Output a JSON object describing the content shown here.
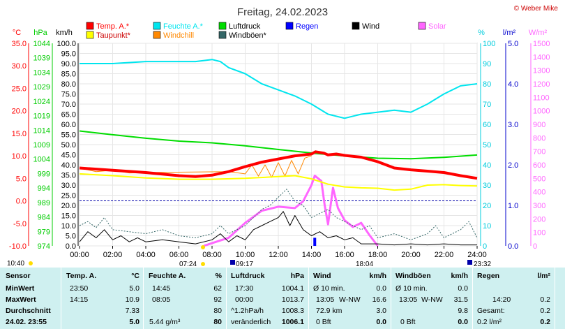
{
  "header": {
    "title": "Freitag, 24.02.2023",
    "copyright": "© Weber Mike"
  },
  "legend": [
    {
      "label": "Temp. A.*",
      "color": "#ff0000"
    },
    {
      "label": "Feuchte A.*",
      "color": "#00e5ee"
    },
    {
      "label": "Luftdruck",
      "color": "#00dd00"
    },
    {
      "label": "Regen",
      "color": "#0000ff"
    },
    {
      "label": "Wind",
      "color": "#000000"
    },
    {
      "label": "Solar",
      "color": "#ff66ff"
    },
    {
      "label": "Taupunkt*",
      "color": "#ffff00"
    },
    {
      "label": "Windchill",
      "color": "#ff8800"
    },
    {
      "label": "Windböen*",
      "color": "#336666"
    }
  ],
  "axis_units": {
    "temp": "°C",
    "press": "hPa",
    "wind": "km/h",
    "hum": "%",
    "rain": "l/m²",
    "solar": "W/m²"
  },
  "chart_data": {
    "type": "line",
    "x_ticks": [
      "00:00",
      "02:00",
      "04:00",
      "06:00",
      "08:00",
      "10:00",
      "12:00",
      "14:00",
      "16:00",
      "18:00",
      "20:00",
      "22:00",
      "24:00"
    ],
    "axes": {
      "temp": {
        "unit": "°C",
        "range": [
          -10,
          35
        ],
        "ticks": [
          "35.0",
          "30.0",
          "25.0",
          "20.0",
          "15.0",
          "10.0",
          "5.0",
          "0.0",
          "-5.0",
          "-10.0"
        ],
        "color": "#ff0000"
      },
      "press": {
        "unit": "hPa",
        "range": [
          974,
          1044
        ],
        "ticks": [
          "1044",
          "1039",
          "1034",
          "1029",
          "1024",
          "1019",
          "1014",
          "1009",
          "1004",
          "999",
          "994",
          "989",
          "984",
          "979",
          "974"
        ],
        "color": "#00cc00"
      },
      "wind": {
        "unit": "km/h",
        "range": [
          0,
          100
        ],
        "ticks": [
          "100.0",
          "95.0",
          "90.0",
          "85.0",
          "80.0",
          "75.0",
          "70.0",
          "65.0",
          "60.0",
          "55.0",
          "50.0",
          "45.0",
          "40.0",
          "35.0",
          "30.0",
          "25.0",
          "20.0",
          "15.0",
          "10.0",
          "5.0",
          "0.0"
        ],
        "color": "#000000"
      },
      "hum": {
        "unit": "%",
        "range": [
          0,
          100
        ],
        "ticks": [
          "100",
          "90",
          "80",
          "70",
          "60",
          "50",
          "40",
          "30",
          "20",
          "10",
          "0"
        ],
        "color": "#00ccdd"
      },
      "rain": {
        "unit": "l/m²",
        "range": [
          0,
          5
        ],
        "ticks": [
          "5.0",
          "4.0",
          "3.0",
          "2.0",
          "1.0",
          "0.0"
        ],
        "color": "#0000cc"
      },
      "solar": {
        "unit": "W/m²",
        "range": [
          0,
          1500
        ],
        "ticks": [
          "1500",
          "1400",
          "1300",
          "1200",
          "1100",
          "1000",
          "900",
          "800",
          "700",
          "600",
          "500",
          "400",
          "300",
          "200",
          "100",
          "0"
        ],
        "color": "#ff66ff"
      }
    },
    "series": [
      {
        "name": "Temp. A.*",
        "axis": "temp",
        "color": "#ff0000",
        "width": 4,
        "points": [
          [
            0,
            7.3
          ],
          [
            2,
            6.8
          ],
          [
            4,
            6.3
          ],
          [
            6,
            5.6
          ],
          [
            7,
            5.4
          ],
          [
            8,
            5.7
          ],
          [
            9,
            6.5
          ],
          [
            10,
            7.6
          ],
          [
            11,
            8.6
          ],
          [
            12,
            9.3
          ],
          [
            13,
            10.0
          ],
          [
            14,
            10.4
          ],
          [
            14.25,
            10.9
          ],
          [
            14.75,
            10.6
          ],
          [
            15,
            10.2
          ],
          [
            15.5,
            10.4
          ],
          [
            16,
            10.1
          ],
          [
            17,
            9.7
          ],
          [
            18,
            8.7
          ],
          [
            19,
            7.3
          ],
          [
            20,
            6.9
          ],
          [
            21,
            6.6
          ],
          [
            22,
            6.3
          ],
          [
            23,
            5.6
          ],
          [
            24,
            5.0
          ]
        ]
      },
      {
        "name": "Taupunkt*",
        "axis": "temp",
        "color": "#ffff00",
        "width": 2,
        "points": [
          [
            0,
            6.0
          ],
          [
            2,
            5.6
          ],
          [
            4,
            5.1
          ],
          [
            6,
            4.8
          ],
          [
            8,
            4.8
          ],
          [
            10,
            5.0
          ],
          [
            12,
            5.4
          ],
          [
            13,
            5.6
          ],
          [
            14,
            4.9
          ],
          [
            15,
            3.7
          ],
          [
            16,
            3.1
          ],
          [
            17,
            2.9
          ],
          [
            18,
            2.8
          ],
          [
            19,
            2.4
          ],
          [
            20,
            2.6
          ],
          [
            21,
            3.5
          ],
          [
            22,
            3.6
          ],
          [
            23,
            3.4
          ],
          [
            24,
            3.3
          ]
        ]
      },
      {
        "name": "Feuchte A.*",
        "axis": "hum",
        "color": "#00e5ee",
        "width": 2,
        "points": [
          [
            0,
            90
          ],
          [
            2,
            90
          ],
          [
            4,
            91
          ],
          [
            6,
            91
          ],
          [
            7,
            91
          ],
          [
            8,
            92
          ],
          [
            8.5,
            91
          ],
          [
            9,
            88
          ],
          [
            10,
            85
          ],
          [
            11,
            80
          ],
          [
            12,
            77
          ],
          [
            13,
            74
          ],
          [
            14,
            70
          ],
          [
            15,
            65
          ],
          [
            16,
            63
          ],
          [
            17,
            65
          ],
          [
            18,
            66
          ],
          [
            19,
            67
          ],
          [
            20,
            66
          ],
          [
            21,
            70
          ],
          [
            22,
            75
          ],
          [
            23,
            79
          ],
          [
            24,
            80
          ]
        ]
      },
      {
        "name": "Luftdruck",
        "axis": "press",
        "color": "#00dd00",
        "width": 2,
        "points": [
          [
            0,
            1013.7
          ],
          [
            2,
            1012.4
          ],
          [
            4,
            1011.2
          ],
          [
            6,
            1010.2
          ],
          [
            8,
            1009.6
          ],
          [
            10,
            1008.6
          ],
          [
            12,
            1007.3
          ],
          [
            14,
            1006.1
          ],
          [
            16,
            1005.1
          ],
          [
            18,
            1004.3
          ],
          [
            20,
            1004.1
          ],
          [
            22,
            1004.6
          ],
          [
            24,
            1005.4
          ]
        ]
      },
      {
        "name": "Wind",
        "axis": "wind",
        "color": "#000000",
        "width": 1,
        "points": [
          [
            0,
            2
          ],
          [
            0.5,
            7
          ],
          [
            1,
            4
          ],
          [
            1.5,
            8
          ],
          [
            2,
            3
          ],
          [
            2.5,
            5
          ],
          [
            3,
            2
          ],
          [
            3.5,
            4
          ],
          [
            4,
            2
          ],
          [
            5,
            3
          ],
          [
            6,
            2
          ],
          [
            7,
            1
          ],
          [
            8,
            3
          ],
          [
            8.5,
            6
          ],
          [
            9,
            2
          ],
          [
            9.5,
            5
          ],
          [
            10,
            3
          ],
          [
            10.5,
            8
          ],
          [
            11,
            10
          ],
          [
            11.5,
            12
          ],
          [
            12,
            14
          ],
          [
            12.3,
            17
          ],
          [
            12.7,
            10
          ],
          [
            13,
            15
          ],
          [
            13.5,
            8
          ],
          [
            14,
            5
          ],
          [
            14.5,
            7
          ],
          [
            15,
            4
          ],
          [
            15.5,
            5
          ],
          [
            16,
            3
          ],
          [
            16.5,
            4
          ],
          [
            17,
            1
          ],
          [
            18,
            1
          ],
          [
            19,
            0.5
          ],
          [
            20,
            1
          ],
          [
            21,
            0.5
          ],
          [
            22,
            1
          ],
          [
            23,
            0.5
          ],
          [
            24,
            0.5
          ]
        ]
      },
      {
        "name": "Windböen*",
        "axis": "wind",
        "color": "#336666",
        "width": 1,
        "dash": true,
        "points": [
          [
            0,
            10
          ],
          [
            0.5,
            12
          ],
          [
            1,
            9
          ],
          [
            1.5,
            14
          ],
          [
            2,
            8
          ],
          [
            3,
            7
          ],
          [
            4,
            6
          ],
          [
            5,
            8
          ],
          [
            6,
            5
          ],
          [
            7,
            4
          ],
          [
            8,
            6
          ],
          [
            8.5,
            10
          ],
          [
            9,
            6
          ],
          [
            10,
            10
          ],
          [
            10.5,
            14
          ],
          [
            11,
            18
          ],
          [
            11.5,
            20
          ],
          [
            12,
            24
          ],
          [
            12.5,
            28
          ],
          [
            13,
            22
          ],
          [
            13.5,
            20
          ],
          [
            14,
            14
          ],
          [
            14.5,
            16
          ],
          [
            15,
            18
          ],
          [
            15.5,
            14
          ],
          [
            16,
            12
          ],
          [
            16.5,
            10
          ],
          [
            17,
            8
          ],
          [
            17.5,
            10
          ],
          [
            18,
            4
          ],
          [
            19,
            6
          ],
          [
            20,
            3
          ],
          [
            21,
            6
          ],
          [
            21.5,
            10
          ],
          [
            22,
            4
          ],
          [
            23,
            8
          ],
          [
            23.5,
            12
          ],
          [
            24,
            4
          ]
        ]
      },
      {
        "name": "Windchill",
        "axis": "temp",
        "color": "#ff8800",
        "width": 1,
        "points": [
          [
            0,
            7.3
          ],
          [
            1,
            6.5
          ],
          [
            2,
            6.8
          ],
          [
            3,
            6.2
          ],
          [
            4,
            6.3
          ],
          [
            9,
            6.5
          ],
          [
            10,
            6.0
          ],
          [
            10.4,
            8.0
          ],
          [
            10.8,
            5.5
          ],
          [
            11.2,
            8.0
          ],
          [
            11.6,
            5.2
          ],
          [
            12,
            8.5
          ],
          [
            12.4,
            5.5
          ],
          [
            12.8,
            9.0
          ],
          [
            13.2,
            6.0
          ],
          [
            13.6,
            9.5
          ],
          [
            14,
            10.0
          ]
        ]
      },
      {
        "name": "Solar",
        "axis": "solar",
        "color": "#ff66ff",
        "width": 3,
        "points": [
          [
            7.5,
            0
          ],
          [
            8,
            20
          ],
          [
            9,
            60
          ],
          [
            10,
            170
          ],
          [
            11,
            260
          ],
          [
            12,
            290
          ],
          [
            13,
            280
          ],
          [
            13.5,
            330
          ],
          [
            14,
            450
          ],
          [
            14.2,
            520
          ],
          [
            14.6,
            480
          ],
          [
            14.8,
            300
          ],
          [
            15,
            160
          ],
          [
            15.3,
            430
          ],
          [
            15.6,
            280
          ],
          [
            16,
            190
          ],
          [
            16.5,
            140
          ],
          [
            17,
            170
          ],
          [
            17.5,
            80
          ],
          [
            18,
            0
          ]
        ]
      }
    ],
    "rain_points": [
      [
        14.2,
        0.2
      ]
    ],
    "sun": {
      "sunrise": "07:24",
      "sunset": "18:04",
      "moonrise": "09:17",
      "moonset": "23:32",
      "twilight": "10:40"
    }
  },
  "table": {
    "header": {
      "sensor": "Sensor",
      "temp": "Temp. A.",
      "temp_unit": "°C",
      "hum": "Feuchte A.",
      "hum_unit": "%",
      "press": "Luftdruck",
      "press_unit": "hPa",
      "wind": "Wind",
      "wind_unit": "km/h",
      "gust": "Windböen",
      "gust_unit": "km/h",
      "rain": "Regen",
      "rain_unit": "l/m²"
    },
    "rows": [
      {
        "label": "MinWert",
        "temp_time": "23:50",
        "temp": "5.0",
        "hum_time": "14:45",
        "hum": "62",
        "press_time": "17:30",
        "press": "1004.1",
        "wind_a": "Ø 10 min.",
        "wind": "0.0",
        "gust_a": "Ø 10 min.",
        "gust": "0.0",
        "rain_a": "",
        "rain": ""
      },
      {
        "label": "MaxWert",
        "temp_time": "14:15",
        "temp": "10.9",
        "hum_time": "08:05",
        "hum": "92",
        "press_time": "00:00",
        "press": "1013.7",
        "wind_a": "13:05",
        "wind_b": "W-NW",
        "wind": "16.6",
        "gust_a": "13:05",
        "gust_b": "W-NW",
        "gust": "31.5",
        "rain_a": "14:20",
        "rain": "0.2"
      },
      {
        "label": "Durchschnitt",
        "temp_time": "",
        "temp": "7.33",
        "hum_time": "",
        "hum": "80",
        "press_time": "^1.2hPa/h",
        "press": "1008.3",
        "wind_a": "72.9 km",
        "wind": "3.0",
        "gust_a": "",
        "gust": "9.8",
        "rain_a": "Gesamt:",
        "rain": "0.2"
      },
      {
        "label": "24.02. 23:55",
        "temp_time": "",
        "temp": "5.0",
        "hum_time": "5.44 g/m³",
        "hum": "80",
        "press_time": "veränderlich",
        "press": "1006.1",
        "wind_a": "0 Bft",
        "wind": "0.0",
        "gust_a": "0 Bft",
        "gust": "0.0",
        "rain_a": "0.2 l/m²",
        "rain": "0.2"
      }
    ]
  }
}
